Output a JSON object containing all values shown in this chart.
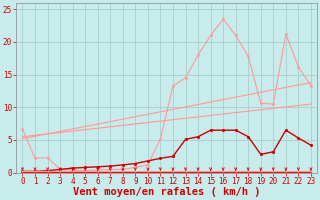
{
  "background_color": "#c8ecec",
  "grid_color": "#b0d0d0",
  "xlabel": "Vent moyen/en rafales ( km/h )",
  "xlim": [
    -0.5,
    23.5
  ],
  "ylim": [
    0,
    26
  ],
  "xticks": [
    0,
    1,
    2,
    3,
    4,
    5,
    6,
    7,
    8,
    9,
    10,
    11,
    12,
    13,
    14,
    15,
    16,
    17,
    18,
    19,
    20,
    21,
    22,
    23
  ],
  "yticks": [
    0,
    5,
    10,
    15,
    20,
    25
  ],
  "pink_jagged_x": [
    0,
    1,
    2,
    3,
    4,
    5,
    6,
    7,
    8,
    9,
    10,
    11,
    12,
    13,
    14,
    15,
    16,
    17,
    18,
    19,
    20,
    21,
    22,
    23
  ],
  "pink_jagged_y": [
    6.7,
    2.2,
    2.3,
    0.5,
    0.4,
    0.3,
    0.4,
    0.5,
    0.5,
    0.8,
    1.2,
    5.2,
    13.3,
    14.5,
    18.0,
    21.0,
    23.5,
    21.0,
    17.8,
    10.6,
    10.5,
    21.2,
    16.2,
    13.3
  ],
  "pink_trend1_x": [
    0,
    23
  ],
  "pink_trend1_y": [
    5.2,
    13.8
  ],
  "pink_trend2_x": [
    0,
    23
  ],
  "pink_trend2_y": [
    5.5,
    10.5
  ],
  "pink_color": "#ff9999",
  "dark_red_curve_x": [
    0,
    1,
    2,
    3,
    4,
    5,
    6,
    7,
    8,
    9,
    10,
    11,
    12,
    13,
    14,
    15,
    16,
    17,
    18,
    19,
    20,
    21,
    22,
    23
  ],
  "dark_red_curve_y": [
    0.2,
    0.2,
    0.3,
    0.5,
    0.7,
    0.8,
    0.9,
    1.0,
    1.2,
    1.4,
    1.8,
    2.2,
    2.5,
    5.1,
    5.5,
    6.5,
    6.5,
    6.5,
    5.5,
    2.8,
    3.2,
    6.5,
    5.3,
    4.2
  ],
  "dark_red_color": "#cc0000",
  "red_flat1_x": [
    0,
    1,
    2,
    3,
    4,
    5,
    6,
    7,
    8,
    9,
    10,
    11,
    12,
    13,
    14,
    15,
    16,
    17,
    18,
    19,
    20,
    21,
    22,
    23
  ],
  "red_flat1_y": [
    0.1,
    0.1,
    0.1,
    0.1,
    0.1,
    0.1,
    0.1,
    0.1,
    0.1,
    0.1,
    0.1,
    0.1,
    0.1,
    0.1,
    0.1,
    0.1,
    0.1,
    0.1,
    0.1,
    0.1,
    0.1,
    0.1,
    0.1,
    0.1
  ],
  "red_flat2_x": [
    0,
    1,
    2,
    3,
    4,
    5,
    6,
    7,
    8,
    9,
    10,
    11,
    12,
    13,
    14,
    15,
    16,
    17,
    18,
    19,
    20,
    21,
    22,
    23
  ],
  "red_flat2_y": [
    0.3,
    0.3,
    0.3,
    0.3,
    0.3,
    0.3,
    0.3,
    0.3,
    0.3,
    0.3,
    0.3,
    0.3,
    0.3,
    0.3,
    0.3,
    0.3,
    0.3,
    0.3,
    0.3,
    0.3,
    0.3,
    0.3,
    0.3,
    0.3
  ],
  "red_color": "#ff0000",
  "pink_flat_x": [
    0,
    1,
    2,
    3,
    4,
    5,
    6,
    7,
    8,
    9,
    10,
    11,
    12,
    13,
    14,
    15,
    16,
    17,
    18,
    19,
    20,
    21,
    22,
    23
  ],
  "pink_flat_y": [
    0.2,
    0.2,
    0.2,
    0.2,
    0.2,
    0.2,
    0.2,
    0.2,
    0.2,
    0.2,
    0.2,
    0.2,
    0.2,
    0.2,
    0.2,
    0.2,
    0.2,
    0.2,
    0.2,
    0.2,
    0.2,
    0.2,
    0.2,
    0.2
  ],
  "arrows_x": [
    0,
    1,
    2,
    3,
    4,
    5,
    6,
    7,
    8,
    9,
    10,
    11,
    12,
    13,
    14,
    15,
    16,
    17,
    18,
    19,
    20,
    21,
    22,
    23
  ],
  "arrow_color": "#cc0000",
  "tick_label_fontsize": 5.5,
  "xlabel_fontsize": 7.5
}
